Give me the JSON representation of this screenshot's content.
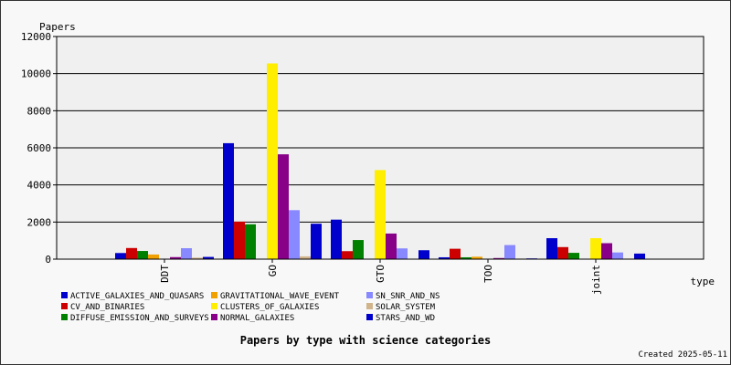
{
  "chart_data": {
    "type": "bar",
    "title": "Papers by type with science categories",
    "ylabel": "Papers",
    "xlabel": "type",
    "ylim": [
      0,
      12000
    ],
    "yticks": [
      0,
      2000,
      4000,
      6000,
      8000,
      10000,
      12000
    ],
    "grid": true,
    "legend_position": "bottom",
    "categories": [
      "DDT",
      "GO",
      "GTO",
      "TOO",
      "joint"
    ],
    "series": [
      {
        "name": "ACTIVE_GALAXIES_AND_QUASARS",
        "color": "#0000cc",
        "values": [
          330,
          6250,
          2130,
          100,
          1130
        ]
      },
      {
        "name": "CV_AND_BINARIES",
        "color": "#cc0000",
        "values": [
          600,
          2020,
          430,
          560,
          650
        ]
      },
      {
        "name": "DIFFUSE_EMISSION_AND_SURVEYS",
        "color": "#008000",
        "values": [
          440,
          1880,
          1030,
          100,
          340
        ]
      },
      {
        "name": "GRAVITATIONAL_WAVE_EVENT",
        "color": "#f0a000",
        "values": [
          250,
          0,
          0,
          130,
          0
        ]
      },
      {
        "name": "CLUSTERS_OF_GALAXIES",
        "color": "#ffee00",
        "values": [
          0,
          10550,
          4800,
          0,
          1130
        ]
      },
      {
        "name": "NORMAL_GALAXIES",
        "color": "#880088",
        "values": [
          110,
          5650,
          1380,
          60,
          860
        ]
      },
      {
        "name": "SN_SNR_AND_NS",
        "color": "#8888ff",
        "values": [
          590,
          2640,
          580,
          760,
          360
        ]
      },
      {
        "name": "SOLAR_SYSTEM",
        "color": "#d2b48c",
        "values": [
          80,
          150,
          0,
          30,
          30
        ]
      },
      {
        "name": "STARS_AND_WD",
        "color": "#0000cc",
        "values": [
          120,
          1910,
          480,
          40,
          300
        ]
      }
    ],
    "footer": "Created 2025-05-11"
  }
}
